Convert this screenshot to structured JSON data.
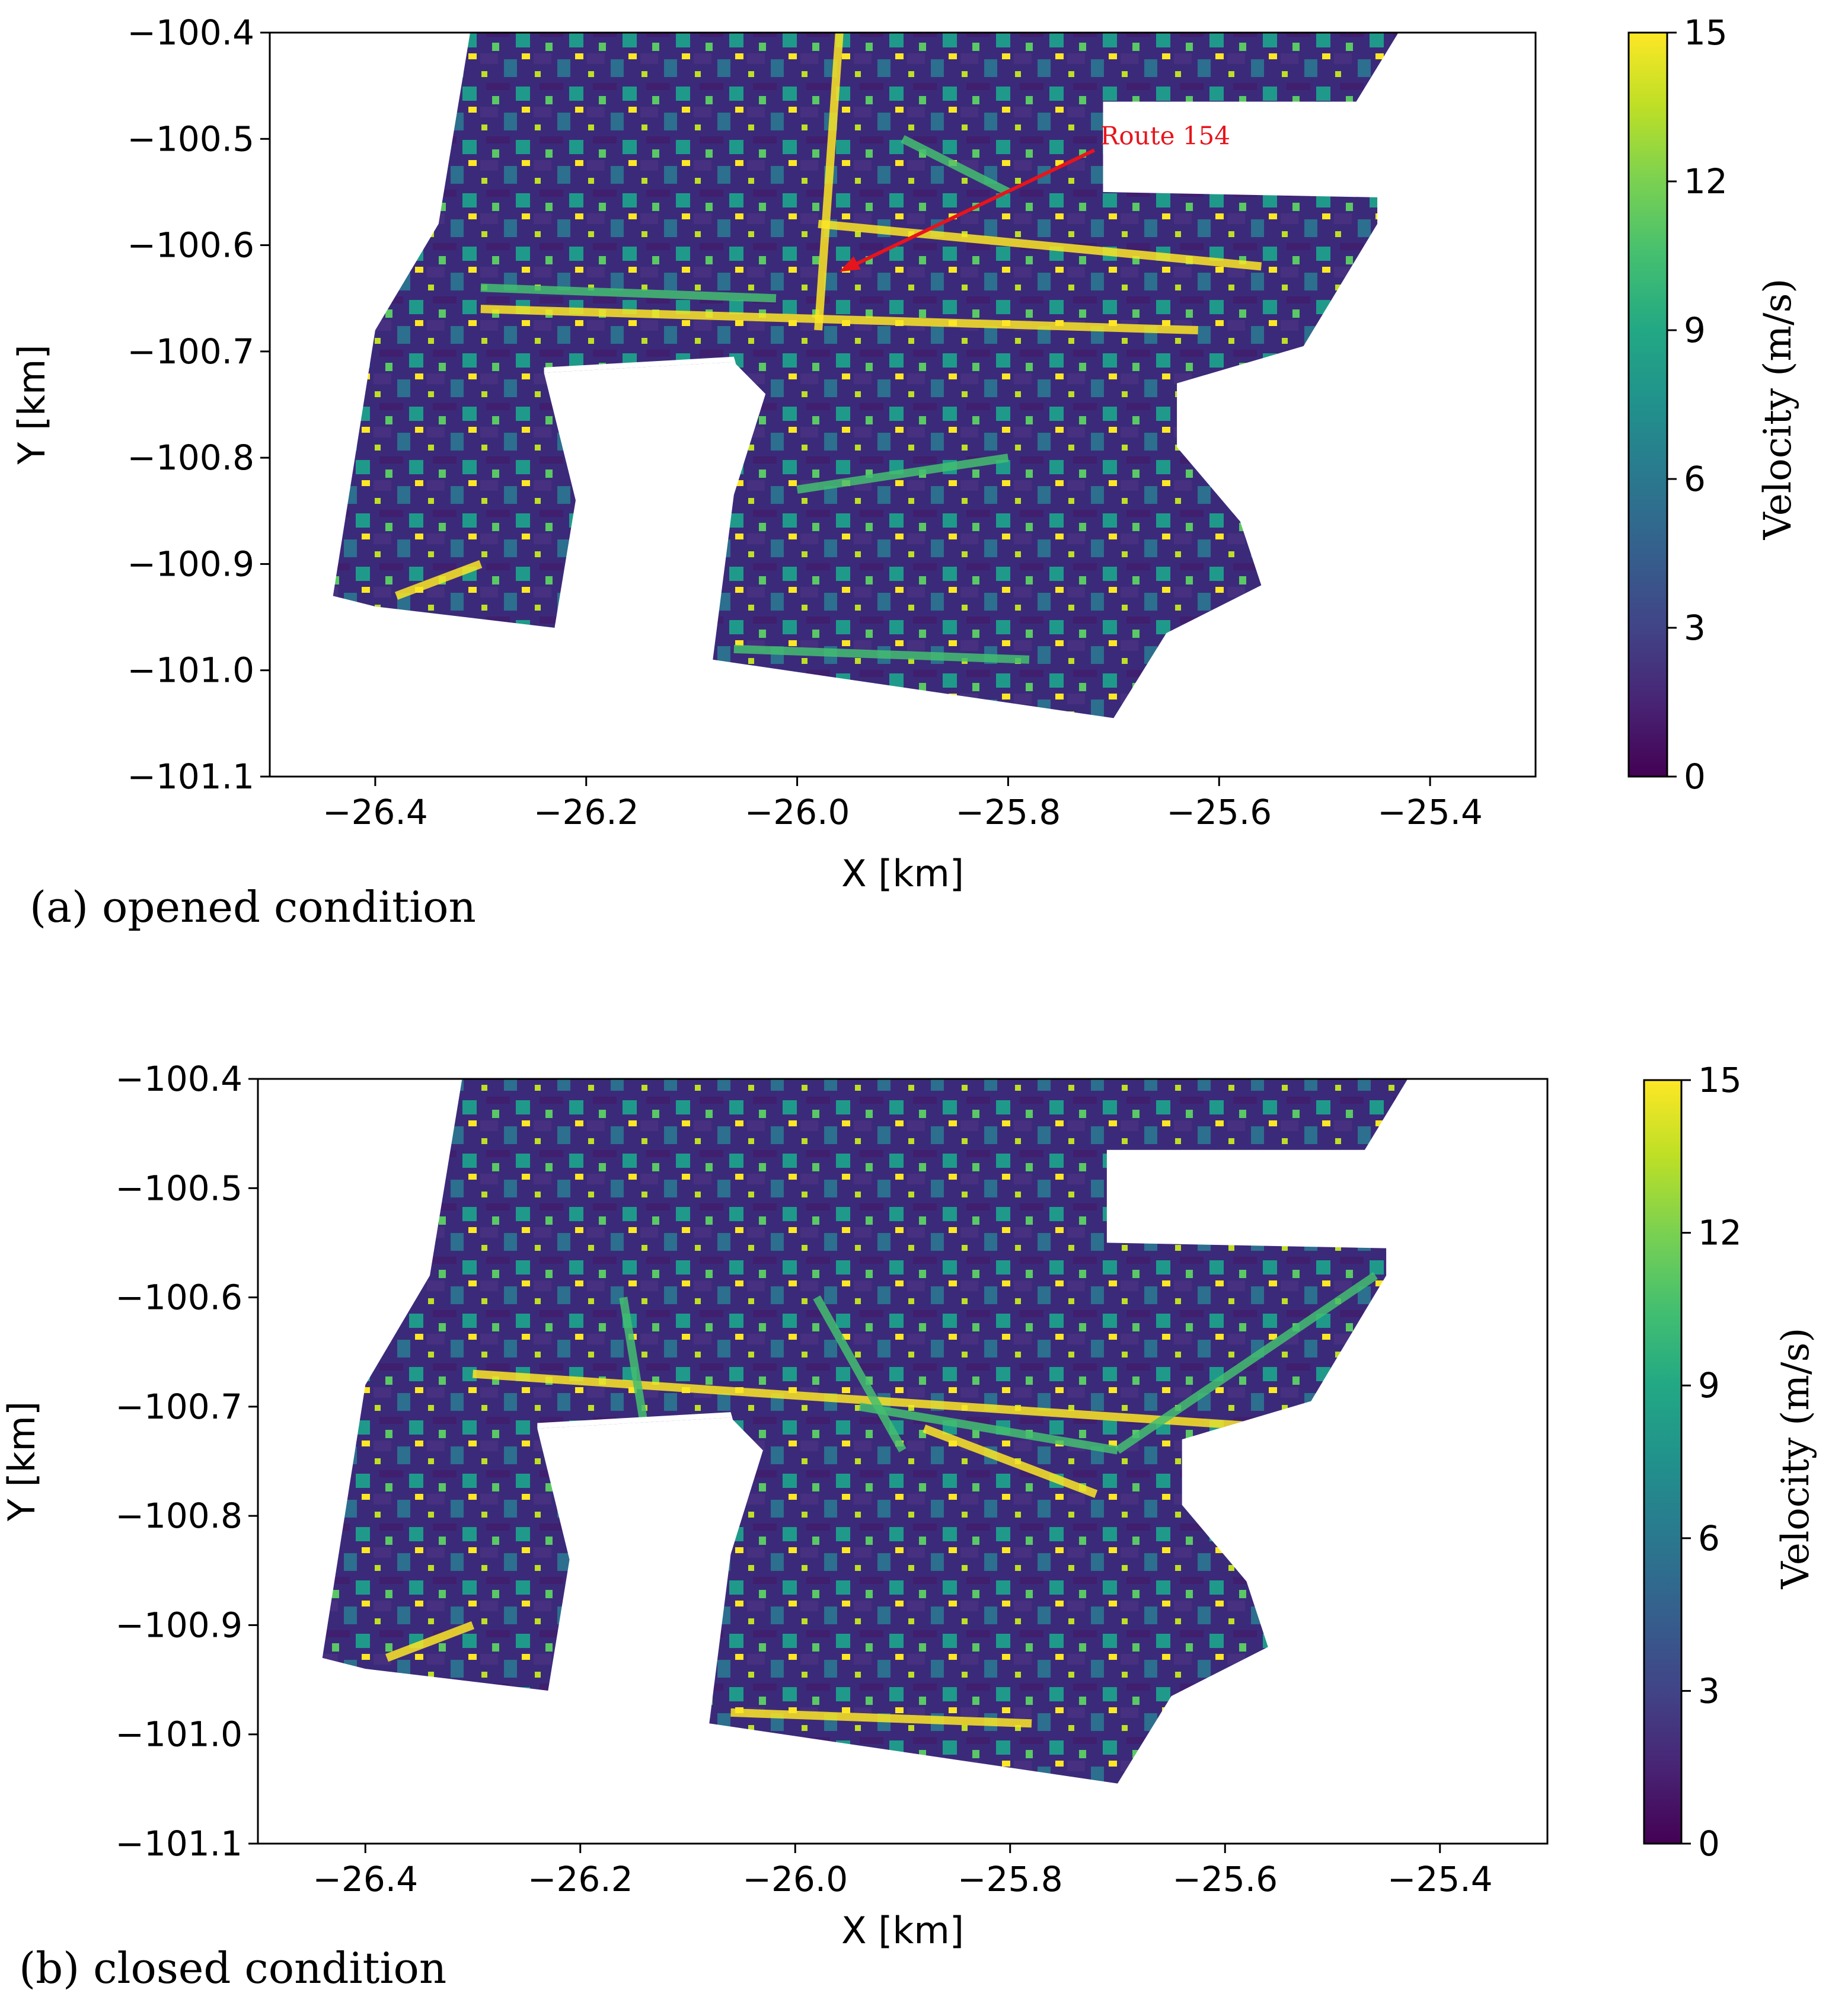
{
  "chart_data": [
    {
      "type": "heatmap",
      "caption": "(a) opened condition",
      "xlabel": "X [km]",
      "ylabel": "Y [km]",
      "xlim": [
        -26.5,
        -25.3
      ],
      "ylim": [
        -101.1,
        -100.4
      ],
      "xticks": [
        -26.4,
        -26.2,
        -26.0,
        -25.8,
        -25.6,
        -25.4
      ],
      "xtick_labels": [
        "−26.4",
        "−26.2",
        "−26.0",
        "−25.8",
        "−25.6",
        "−25.4"
      ],
      "yticks": [
        -100.4,
        -100.5,
        -100.6,
        -100.7,
        -100.8,
        -100.9,
        -101.0,
        -101.1
      ],
      "ytick_labels": [
        "−100.4",
        "−100.5",
        "−100.6",
        "−100.7",
        "−100.8",
        "−100.9",
        "−101.0",
        "−101.1"
      ],
      "colorbar": {
        "label": "Velocity  (m/s)",
        "range": [
          0,
          15
        ],
        "ticks": [
          0,
          3,
          6,
          9,
          12,
          15
        ],
        "tick_labels": [
          "0",
          "3",
          "6",
          "9",
          "12",
          "15"
        ],
        "colormap": "viridis"
      },
      "annotation": {
        "text": "Route 154",
        "x": -25.96,
        "y": -100.625,
        "color": "#e8141c"
      },
      "colors": {
        "building": "#808080",
        "no_data": "#ffffff"
      }
    },
    {
      "type": "heatmap",
      "caption": "(b) closed condition",
      "xlabel": "X [km]",
      "ylabel": "Y [km]",
      "xlim": [
        -26.5,
        -25.3
      ],
      "ylim": [
        -101.1,
        -100.4
      ],
      "xticks": [
        -26.4,
        -26.2,
        -26.0,
        -25.8,
        -25.6,
        -25.4
      ],
      "xtick_labels": [
        "−26.4",
        "−26.2",
        "−26.0",
        "−25.8",
        "−25.6",
        "−25.4"
      ],
      "yticks": [
        -100.4,
        -100.5,
        -100.6,
        -100.7,
        -100.8,
        -100.9,
        -101.0,
        -101.1
      ],
      "ytick_labels": [
        "−100.4",
        "−100.5",
        "−100.6",
        "−100.7",
        "−100.8",
        "−100.9",
        "−101.0",
        "−101.1"
      ],
      "colorbar": {
        "label": "Velocity  (m/s)",
        "range": [
          0,
          15
        ],
        "ticks": [
          0,
          3,
          6,
          9,
          12,
          15
        ],
        "tick_labels": [
          "0",
          "3",
          "6",
          "9",
          "12",
          "15"
        ],
        "colormap": "viridis"
      },
      "colors": {
        "building": "#808080",
        "no_data": "#ffffff"
      }
    }
  ]
}
